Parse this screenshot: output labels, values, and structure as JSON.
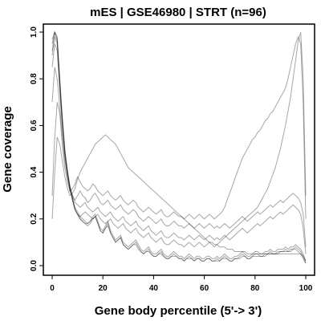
{
  "chart_data": {
    "type": "line",
    "title": "mES | GSE46980 | STRT (n=96)",
    "xlabel": "Gene body percentile (5'-> 3')",
    "ylabel": "Gene coverage",
    "xlim": [
      0,
      100
    ],
    "ylim": [
      0,
      1.0
    ],
    "xticks": [
      "0",
      "20",
      "40",
      "60",
      "80",
      "100"
    ],
    "yticks": [
      "0.0",
      "0.2",
      "0.4",
      "0.6",
      "0.8",
      "1.0"
    ],
    "grid": false,
    "line_color": "#000000",
    "series_count": 96,
    "series": [
      {
        "values": [
          0.92,
          1.0,
          0.98,
          0.78,
          0.62,
          0.48,
          0.4,
          0.33,
          0.28,
          0.24,
          0.22,
          0.2,
          0.19,
          0.18,
          0.17,
          0.18,
          0.2,
          0.21,
          0.18,
          0.15,
          0.14,
          0.16,
          0.18,
          0.14,
          0.12,
          0.1,
          0.11,
          0.12,
          0.09,
          0.08,
          0.07,
          0.08,
          0.09,
          0.1,
          0.08,
          0.06,
          0.05,
          0.06,
          0.07,
          0.05,
          0.04,
          0.04,
          0.05,
          0.06,
          0.04,
          0.03,
          0.03,
          0.04,
          0.05,
          0.04,
          0.03,
          0.03,
          0.02,
          0.03,
          0.04,
          0.03,
          0.02,
          0.03,
          0.03,
          0.02,
          0.02,
          0.03,
          0.03,
          0.02,
          0.02,
          0.03,
          0.02,
          0.03,
          0.04,
          0.03,
          0.02,
          0.02,
          0.03,
          0.03,
          0.04,
          0.05,
          0.04,
          0.03,
          0.03,
          0.04,
          0.05,
          0.05,
          0.04,
          0.04,
          0.05,
          0.05,
          0.06,
          0.05,
          0.05,
          0.06,
          0.06,
          0.06,
          0.07,
          0.06,
          0.07,
          0.07,
          0.08,
          0.07,
          0.06,
          0.04,
          0.01
        ]
      },
      {
        "values": [
          0.95,
          1.0,
          0.96,
          0.8,
          0.64,
          0.5,
          0.41,
          0.34,
          0.29,
          0.25,
          0.23,
          0.21,
          0.2,
          0.19,
          0.18,
          0.19,
          0.21,
          0.22,
          0.19,
          0.16,
          0.15,
          0.17,
          0.19,
          0.15,
          0.13,
          0.11,
          0.12,
          0.13,
          0.1,
          0.09,
          0.08,
          0.09,
          0.1,
          0.11,
          0.09,
          0.07,
          0.06,
          0.07,
          0.08,
          0.06,
          0.05,
          0.05,
          0.06,
          0.07,
          0.05,
          0.04,
          0.04,
          0.05,
          0.06,
          0.05,
          0.04,
          0.04,
          0.03,
          0.04,
          0.05,
          0.04,
          0.03,
          0.04,
          0.04,
          0.03,
          0.03,
          0.04,
          0.04,
          0.03,
          0.03,
          0.04,
          0.03,
          0.04,
          0.05,
          0.04,
          0.03,
          0.03,
          0.04,
          0.04,
          0.05,
          0.06,
          0.05,
          0.04,
          0.04,
          0.05,
          0.06,
          0.06,
          0.05,
          0.05,
          0.06,
          0.06,
          0.07,
          0.06,
          0.06,
          0.07,
          0.07,
          0.07,
          0.08,
          0.07,
          0.08,
          0.08,
          0.09,
          0.08,
          0.07,
          0.05,
          0.02
        ]
      },
      {
        "values": [
          0.7,
          0.85,
          0.8,
          0.68,
          0.55,
          0.45,
          0.38,
          0.32,
          0.3,
          0.28,
          0.3,
          0.32,
          0.3,
          0.29,
          0.27,
          0.28,
          0.3,
          0.31,
          0.29,
          0.27,
          0.26,
          0.27,
          0.28,
          0.26,
          0.25,
          0.24,
          0.25,
          0.26,
          0.24,
          0.23,
          0.22,
          0.23,
          0.24,
          0.23,
          0.21,
          0.2,
          0.19,
          0.2,
          0.21,
          0.2,
          0.19,
          0.18,
          0.19,
          0.2,
          0.18,
          0.17,
          0.17,
          0.18,
          0.19,
          0.18,
          0.17,
          0.17,
          0.16,
          0.17,
          0.18,
          0.17,
          0.16,
          0.17,
          0.18,
          0.17,
          0.16,
          0.17,
          0.18,
          0.17,
          0.16,
          0.17,
          0.16,
          0.17,
          0.18,
          0.17,
          0.16,
          0.17,
          0.18,
          0.19,
          0.2,
          0.21,
          0.2,
          0.19,
          0.2,
          0.21,
          0.22,
          0.23,
          0.22,
          0.23,
          0.24,
          0.25,
          0.26,
          0.25,
          0.26,
          0.27,
          0.28,
          0.27,
          0.28,
          0.29,
          0.3,
          0.31,
          0.3,
          0.29,
          0.27,
          0.22,
          0.08
        ]
      },
      {
        "values": [
          0.3,
          0.55,
          0.7,
          0.65,
          0.52,
          0.42,
          0.36,
          0.32,
          0.33,
          0.35,
          0.38,
          0.36,
          0.34,
          0.33,
          0.32,
          0.33,
          0.35,
          0.34,
          0.32,
          0.31,
          0.3,
          0.31,
          0.32,
          0.3,
          0.29,
          0.28,
          0.29,
          0.3,
          0.28,
          0.27,
          0.26,
          0.27,
          0.28,
          0.27,
          0.25,
          0.24,
          0.23,
          0.24,
          0.25,
          0.24,
          0.23,
          0.22,
          0.23,
          0.24,
          0.22,
          0.21,
          0.21,
          0.22,
          0.23,
          0.22,
          0.21,
          0.21,
          0.2,
          0.21,
          0.22,
          0.21,
          0.2,
          0.21,
          0.22,
          0.21,
          0.2,
          0.21,
          0.22,
          0.21,
          0.2,
          0.21,
          0.22,
          0.23,
          0.25,
          0.28,
          0.31,
          0.34,
          0.37,
          0.4,
          0.43,
          0.46,
          0.48,
          0.5,
          0.52,
          0.54,
          0.55,
          0.57,
          0.58,
          0.6,
          0.62,
          0.63,
          0.65,
          0.66,
          0.68,
          0.7,
          0.72,
          0.74,
          0.76,
          0.8,
          0.85,
          0.9,
          0.95,
          0.98,
          0.95,
          0.7,
          0.2
        ]
      },
      {
        "values": [
          0.2,
          0.4,
          0.55,
          0.52,
          0.45,
          0.38,
          0.33,
          0.3,
          0.31,
          0.33,
          0.37,
          0.4,
          0.42,
          0.44,
          0.46,
          0.48,
          0.5,
          0.52,
          0.53,
          0.54,
          0.55,
          0.56,
          0.55,
          0.54,
          0.53,
          0.52,
          0.5,
          0.48,
          0.46,
          0.44,
          0.42,
          0.41,
          0.4,
          0.39,
          0.38,
          0.37,
          0.36,
          0.35,
          0.34,
          0.33,
          0.32,
          0.31,
          0.3,
          0.29,
          0.28,
          0.27,
          0.26,
          0.25,
          0.24,
          0.23,
          0.22,
          0.21,
          0.2,
          0.19,
          0.18,
          0.17,
          0.16,
          0.15,
          0.14,
          0.13,
          0.12,
          0.11,
          0.1,
          0.1,
          0.09,
          0.09,
          0.08,
          0.08,
          0.08,
          0.07,
          0.07,
          0.07,
          0.06,
          0.06,
          0.06,
          0.06,
          0.06,
          0.05,
          0.05,
          0.05,
          0.05,
          0.05,
          0.05,
          0.05,
          0.05,
          0.05,
          0.05,
          0.05,
          0.05,
          0.05,
          0.05,
          0.05,
          0.05,
          0.05,
          0.05,
          0.05,
          0.05,
          0.05,
          0.05,
          0.04,
          0.02
        ]
      },
      {
        "values": [
          0.85,
          0.95,
          0.92,
          0.75,
          0.6,
          0.47,
          0.39,
          0.33,
          0.28,
          0.24,
          0.22,
          0.21,
          0.22,
          0.23,
          0.22,
          0.21,
          0.2,
          0.21,
          0.22,
          0.2,
          0.19,
          0.18,
          0.19,
          0.2,
          0.18,
          0.17,
          0.16,
          0.17,
          0.18,
          0.16,
          0.15,
          0.14,
          0.15,
          0.16,
          0.14,
          0.13,
          0.12,
          0.13,
          0.14,
          0.12,
          0.11,
          0.1,
          0.11,
          0.12,
          0.1,
          0.09,
          0.09,
          0.1,
          0.11,
          0.1,
          0.09,
          0.09,
          0.08,
          0.09,
          0.1,
          0.09,
          0.08,
          0.09,
          0.1,
          0.09,
          0.08,
          0.09,
          0.1,
          0.09,
          0.08,
          0.09,
          0.1,
          0.11,
          0.12,
          0.13,
          0.14,
          0.15,
          0.16,
          0.17,
          0.18,
          0.19,
          0.2,
          0.21,
          0.22,
          0.23,
          0.24,
          0.25,
          0.27,
          0.29,
          0.31,
          0.33,
          0.36,
          0.39,
          0.42,
          0.46,
          0.5,
          0.55,
          0.6,
          0.66,
          0.72,
          0.8,
          0.88,
          0.96,
          1.0,
          0.8,
          0.3
        ]
      },
      {
        "values": [
          0.97,
          1.0,
          0.97,
          0.79,
          0.63,
          0.49,
          0.4,
          0.34,
          0.29,
          0.24,
          0.22,
          0.2,
          0.19,
          0.18,
          0.18,
          0.19,
          0.2,
          0.21,
          0.18,
          0.15,
          0.14,
          0.16,
          0.17,
          0.14,
          0.12,
          0.1,
          0.11,
          0.12,
          0.09,
          0.08,
          0.07,
          0.08,
          0.09,
          0.09,
          0.07,
          0.06,
          0.05,
          0.06,
          0.06,
          0.05,
          0.04,
          0.04,
          0.05,
          0.05,
          0.04,
          0.03,
          0.03,
          0.04,
          0.04,
          0.04,
          0.03,
          0.03,
          0.02,
          0.03,
          0.03,
          0.03,
          0.02,
          0.03,
          0.03,
          0.02,
          0.02,
          0.03,
          0.03,
          0.02,
          0.02,
          0.02,
          0.02,
          0.03,
          0.03,
          0.03,
          0.02,
          0.02,
          0.03,
          0.03,
          0.03,
          0.04,
          0.04,
          0.03,
          0.03,
          0.04,
          0.04,
          0.04,
          0.04,
          0.04,
          0.04,
          0.05,
          0.05,
          0.05,
          0.05,
          0.05,
          0.06,
          0.06,
          0.06,
          0.06,
          0.06,
          0.07,
          0.07,
          0.06,
          0.05,
          0.03,
          0.01
        ]
      },
      {
        "values": [
          0.9,
          0.98,
          0.95,
          0.77,
          0.61,
          0.48,
          0.4,
          0.34,
          0.3,
          0.27,
          0.26,
          0.25,
          0.26,
          0.27,
          0.25,
          0.24,
          0.23,
          0.24,
          0.25,
          0.23,
          0.22,
          0.21,
          0.22,
          0.23,
          0.21,
          0.2,
          0.19,
          0.2,
          0.21,
          0.19,
          0.18,
          0.17,
          0.18,
          0.19,
          0.17,
          0.16,
          0.15,
          0.16,
          0.17,
          0.15,
          0.14,
          0.13,
          0.14,
          0.15,
          0.13,
          0.12,
          0.12,
          0.13,
          0.14,
          0.13,
          0.12,
          0.12,
          0.11,
          0.12,
          0.13,
          0.12,
          0.11,
          0.12,
          0.13,
          0.12,
          0.11,
          0.12,
          0.13,
          0.12,
          0.11,
          0.12,
          0.11,
          0.12,
          0.13,
          0.12,
          0.11,
          0.12,
          0.13,
          0.14,
          0.15,
          0.16,
          0.15,
          0.14,
          0.15,
          0.16,
          0.17,
          0.18,
          0.17,
          0.18,
          0.19,
          0.2,
          0.21,
          0.2,
          0.21,
          0.22,
          0.23,
          0.22,
          0.23,
          0.24,
          0.25,
          0.26,
          0.25,
          0.24,
          0.22,
          0.16,
          0.05
        ]
      }
    ]
  }
}
